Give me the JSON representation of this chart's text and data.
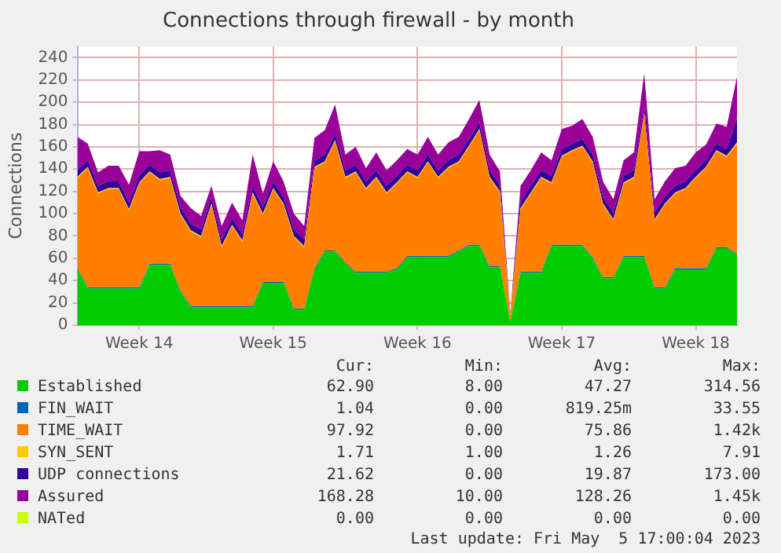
{
  "chart_data": {
    "type": "area",
    "title": "Connections through firewall - by month",
    "ylabel": "Connections",
    "stacked": true,
    "grid": true,
    "legend": "bottom",
    "marker": "none",
    "categories": [
      null,
      null,
      null,
      null,
      null,
      null,
      "Week 14",
      null,
      null,
      null,
      null,
      null,
      null,
      null,
      null,
      null,
      null,
      null,
      null,
      "Week 15",
      null,
      null,
      null,
      null,
      null,
      null,
      null,
      null,
      null,
      null,
      null,
      null,
      null,
      "Week 16",
      null,
      null,
      null,
      null,
      null,
      null,
      null,
      null,
      null,
      null,
      null,
      null,
      null,
      "Week 17",
      null,
      null,
      null,
      null,
      null,
      null,
      null,
      null,
      null,
      null,
      null,
      null,
      "Week 18",
      null,
      null,
      null,
      null
    ],
    "ylim": [
      0,
      250
    ],
    "yticks": [
      0,
      20,
      40,
      60,
      80,
      100,
      120,
      140,
      160,
      180,
      200,
      220,
      240
    ],
    "series": [
      {
        "name": "Established",
        "color": "#00cc00",
        "values": [
          50,
          33,
          33,
          33,
          33,
          33,
          33,
          54,
          54,
          54,
          30,
          16,
          16,
          16,
          16,
          16,
          16,
          16,
          38,
          38,
          38,
          14,
          14,
          50,
          66,
          66,
          55,
          47,
          47,
          47,
          47,
          50,
          61,
          61,
          61,
          61,
          61,
          66,
          71,
          71,
          52,
          52,
          3,
          47,
          47,
          47,
          71,
          71,
          71,
          71,
          60,
          42,
          42,
          61,
          61,
          61,
          33,
          33,
          50,
          50,
          50,
          50,
          69,
          69,
          63
        ]
      },
      {
        "name": "FIN_WAIT",
        "color": "#0066b3",
        "values": [
          1,
          1,
          1,
          1,
          1,
          1,
          1,
          1,
          1,
          1,
          1,
          1,
          1,
          1,
          1,
          1,
          1,
          1,
          1,
          1,
          1,
          1,
          1,
          1,
          1,
          1,
          1,
          1,
          1,
          1,
          1,
          1,
          1,
          1,
          1,
          1,
          1,
          1,
          1,
          1,
          1,
          1,
          0,
          1,
          1,
          1,
          1,
          1,
          1,
          1,
          1,
          1,
          1,
          1,
          1,
          1,
          1,
          1,
          1,
          1,
          1,
          1,
          1,
          1,
          1
        ]
      },
      {
        "name": "TIME_WAIT",
        "color": "#ff8000",
        "values": [
          81,
          107,
          84,
          88,
          88,
          69,
          93,
          82,
          75,
          77,
          68,
          67,
          62,
          91,
          53,
          72,
          58,
          101,
          60,
          83,
          69,
          64,
          55,
          90,
          79,
          98,
          76,
          89,
          74,
          84,
          70,
          76,
          75,
          70,
          84,
          70,
          79,
          79,
          88,
          103,
          79,
          66,
          5,
          56,
          70,
          84,
          55,
          79,
          84,
          88,
          85,
          65,
          51,
          65,
          70,
          127,
          60,
          74,
          67,
          71,
          81,
          90,
          86,
          81,
          98
        ]
      },
      {
        "name": "SYN_SENT",
        "color": "#ffcc00",
        "values": [
          1,
          1,
          1,
          1,
          1,
          1,
          1,
          1,
          1,
          1,
          1,
          1,
          1,
          1,
          1,
          1,
          1,
          1,
          1,
          1,
          1,
          1,
          1,
          1,
          1,
          1,
          1,
          1,
          1,
          1,
          1,
          1,
          1,
          1,
          1,
          1,
          1,
          1,
          1,
          1,
          1,
          1,
          1,
          1,
          1,
          1,
          1,
          1,
          1,
          1,
          1,
          1,
          1,
          1,
          1,
          1,
          1,
          1,
          1,
          1,
          1,
          1,
          1,
          1,
          2
        ]
      },
      {
        "name": "UDP connections",
        "color": "#330099",
        "values": [
          6,
          6,
          6,
          6,
          6,
          6,
          6,
          6,
          6,
          6,
          6,
          6,
          6,
          6,
          6,
          6,
          6,
          6,
          6,
          6,
          6,
          6,
          6,
          6,
          6,
          6,
          6,
          6,
          6,
          6,
          6,
          6,
          6,
          6,
          6,
          6,
          6,
          6,
          6,
          6,
          6,
          6,
          0,
          6,
          6,
          6,
          6,
          6,
          6,
          6,
          6,
          6,
          6,
          6,
          6,
          6,
          6,
          6,
          6,
          6,
          6,
          6,
          6,
          6,
          22
        ]
      },
      {
        "name": "Assured",
        "color": "#990099",
        "values": [
          30,
          15,
          12,
          14,
          14,
          16,
          22,
          12,
          20,
          14,
          10,
          14,
          12,
          10,
          12,
          14,
          12,
          28,
          12,
          18,
          14,
          14,
          12,
          20,
          22,
          26,
          14,
          16,
          12,
          16,
          14,
          14,
          14,
          14,
          16,
          14,
          16,
          16,
          18,
          20,
          14,
          12,
          2,
          14,
          14,
          16,
          14,
          18,
          16,
          18,
          16,
          14,
          12,
          14,
          16,
          30,
          12,
          14,
          16,
          14,
          16,
          14,
          18,
          20,
          37
        ]
      },
      {
        "name": "NATed",
        "color": "#ccff00",
        "values": [
          null,
          null,
          null,
          null,
          null,
          null,
          null,
          null,
          null,
          null,
          null,
          null,
          null,
          null,
          null,
          null,
          null,
          null,
          null,
          null,
          null,
          null,
          null,
          null,
          null,
          null,
          null,
          null,
          null,
          null,
          null,
          null,
          null,
          null,
          null,
          null,
          null,
          null,
          null,
          null,
          null,
          null,
          null,
          null,
          null,
          null,
          null,
          null,
          null,
          null,
          null,
          null,
          null,
          null,
          null,
          null,
          null,
          null,
          null,
          null,
          null,
          null,
          null,
          null,
          null
        ]
      }
    ],
    "annotations": [
      "Cur:",
      "Min:",
      "Avg:",
      "Max:",
      "62.90",
      "8.00",
      "47.27",
      "314.56",
      "1.04",
      "0.00",
      "819.25m",
      "33.55",
      "97.92",
      "0.00",
      "75.86",
      "1.42k",
      "1.71",
      "1.00",
      "1.26",
      "7.91",
      "21.62",
      "0.00",
      "19.87",
      "173.00",
      "168.28",
      "10.00",
      "128.26",
      "1.45k",
      "0.00",
      "0.00",
      "0.00",
      "0.00",
      "Last update: Fri May  5 17:00:04 2023"
    ]
  }
}
